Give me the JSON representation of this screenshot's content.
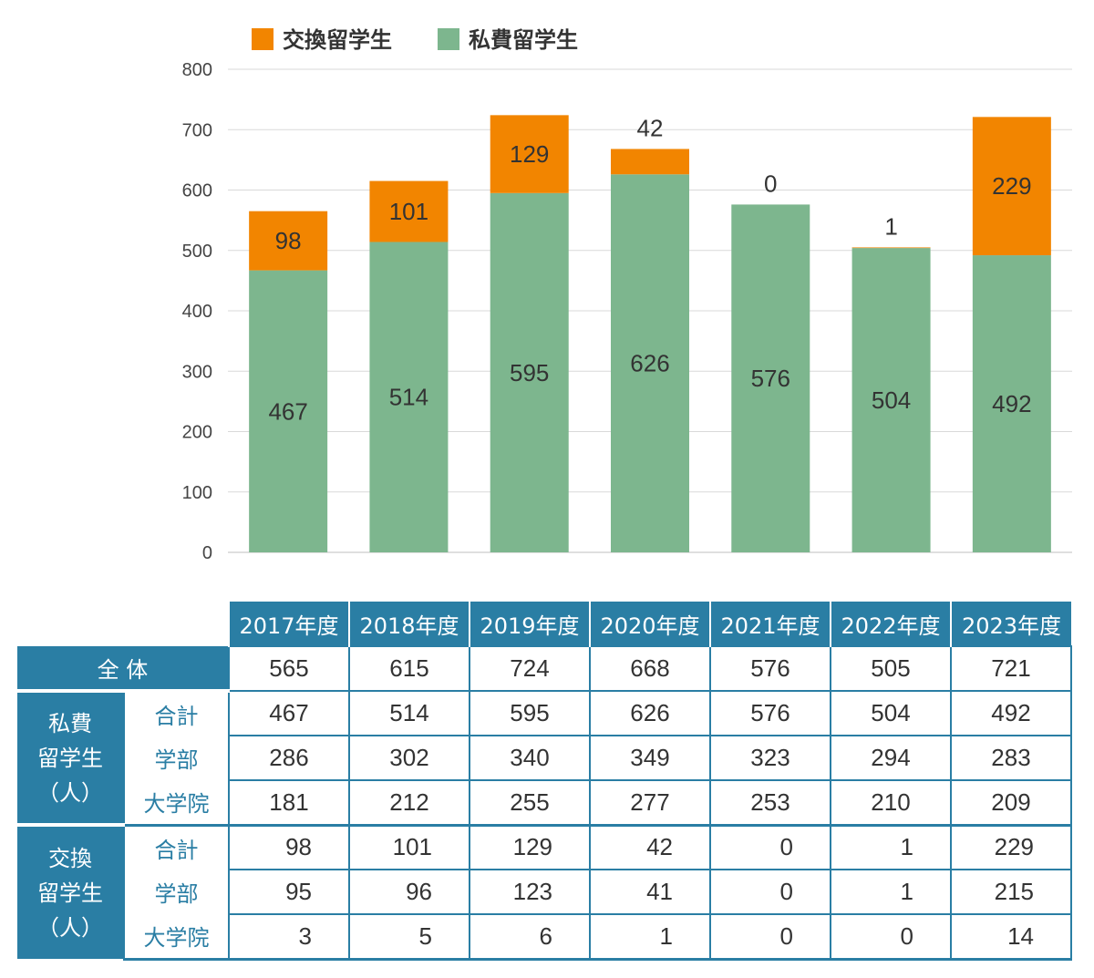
{
  "chart_data": {
    "type": "bar",
    "stacked": true,
    "categories": [
      "2017年度",
      "2018年度",
      "2019年度",
      "2020年度",
      "2021年度",
      "2022年度",
      "2023年度"
    ],
    "series": [
      {
        "name": "私費留学生",
        "values": [
          467,
          514,
          595,
          626,
          576,
          504,
          492
        ],
        "color": "#7db68e"
      },
      {
        "name": "交換留学生",
        "values": [
          98,
          101,
          129,
          42,
          0,
          1,
          229
        ],
        "color": "#f28500"
      }
    ],
    "ylim": [
      0,
      800
    ],
    "yticks": [
      "0",
      "100",
      "200",
      "300",
      "400",
      "500",
      "600",
      "700",
      "800"
    ],
    "grid": true,
    "legend_position": "top"
  },
  "legend": [
    {
      "label": "交換留学生",
      "color": "#f28500"
    },
    {
      "label": "私費留学生",
      "color": "#7db68e"
    }
  ],
  "table": {
    "years": [
      "2017年度",
      "2018年度",
      "2019年度",
      "2020年度",
      "2021年度",
      "2022年度",
      "2023年度"
    ],
    "total_label": "全 体",
    "total": [
      "565",
      "615",
      "724",
      "668",
      "576",
      "505",
      "721"
    ],
    "groups": [
      {
        "label_lines": [
          "私費",
          "留学生",
          "（人）"
        ],
        "rows": [
          {
            "label": "合計",
            "values": [
              "467",
              "514",
              "595",
              "626",
              "576",
              "504",
              "492"
            ]
          },
          {
            "label": "学部",
            "values": [
              "286",
              "302",
              "340",
              "349",
              "323",
              "294",
              "283"
            ]
          },
          {
            "label": "大学院",
            "values": [
              "181",
              "212",
              "255",
              "277",
              "253",
              "210",
              "209"
            ]
          }
        ]
      },
      {
        "label_lines": [
          "交換",
          "留学生",
          "（人）"
        ],
        "rows": [
          {
            "label": "合計",
            "values": [
              "98",
              "101",
              "129",
              "42",
              "0",
              "1",
              "229"
            ]
          },
          {
            "label": "学部",
            "values": [
              "95",
              "96",
              "123",
              "41",
              "0",
              "1",
              "215"
            ]
          },
          {
            "label": "大学院",
            "values": [
              "3",
              "5",
              "6",
              "1",
              "0",
              "0",
              "14"
            ]
          }
        ]
      }
    ]
  }
}
